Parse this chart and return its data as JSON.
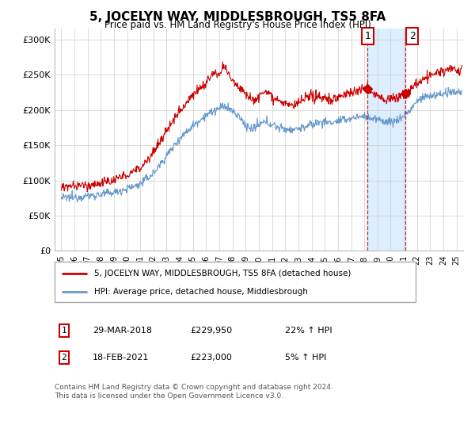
{
  "title": "5, JOCELYN WAY, MIDDLESBROUGH, TS5 8FA",
  "subtitle": "Price paid vs. HM Land Registry's House Price Index (HPI)",
  "ylabel_ticks": [
    "£0",
    "£50K",
    "£100K",
    "£150K",
    "£200K",
    "£250K",
    "£300K"
  ],
  "ytick_values": [
    0,
    50000,
    100000,
    150000,
    200000,
    250000,
    300000
  ],
  "ylim": [
    0,
    315000
  ],
  "xlim_start": 1994.5,
  "xlim_end": 2025.5,
  "red_color": "#cc0000",
  "blue_color": "#6699cc",
  "shade_color": "#ddeeff",
  "dashed_red": "#cc0000",
  "bg_color": "#ffffff",
  "legend1_label": "5, JOCELYN WAY, MIDDLESBROUGH, TS5 8FA (detached house)",
  "legend2_label": "HPI: Average price, detached house, Middlesbrough",
  "annotation1": {
    "label": "1",
    "date": "29-MAR-2018",
    "price": "£229,950",
    "pct": "22% ↑ HPI"
  },
  "annotation2": {
    "label": "2",
    "date": "18-FEB-2021",
    "price": "£223,000",
    "pct": "5% ↑ HPI"
  },
  "marker1_x": 2018.25,
  "marker1_y": 229950,
  "marker2_x": 2021.13,
  "marker2_y": 223000,
  "vline1_x": 2018.25,
  "vline2_x": 2021.13,
  "copyright_text": "Contains HM Land Registry data © Crown copyright and database right 2024.\nThis data is licensed under the Open Government Licence v3.0.",
  "xtick_years": [
    1995,
    1996,
    1997,
    1998,
    1999,
    2000,
    2001,
    2002,
    2003,
    2004,
    2005,
    2006,
    2007,
    2008,
    2009,
    2010,
    2011,
    2012,
    2013,
    2014,
    2015,
    2016,
    2017,
    2018,
    2019,
    2020,
    2021,
    2022,
    2023,
    2024,
    2025
  ],
  "xtick_labels": [
    "95",
    "96",
    "97",
    "98",
    "99",
    "00",
    "01",
    "02",
    "03",
    "04",
    "05",
    "06",
    "07",
    "08",
    "09",
    "10",
    "11",
    "12",
    "13",
    "14",
    "15",
    "16",
    "17",
    "18",
    "19",
    "20",
    "21",
    "22",
    "23",
    "24",
    "25"
  ]
}
